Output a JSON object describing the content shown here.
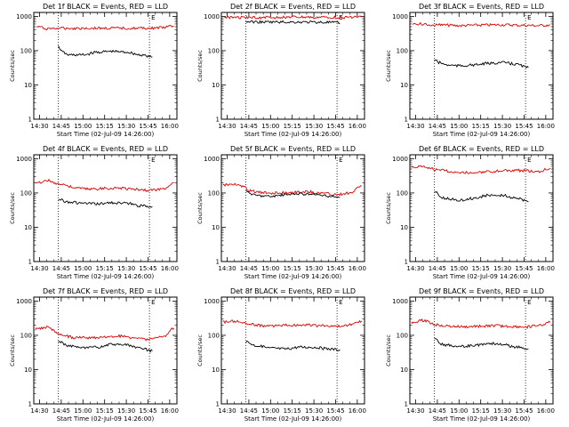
{
  "figure": {
    "colors": {
      "events": "#000000",
      "lld": "#e00000",
      "axes": "#000000",
      "background": "#ffffff"
    }
  },
  "chart_data": [
    {
      "type": "line",
      "title": "Det 1f BLACK = Events, RED = LLD",
      "flag_label": "E",
      "xlabel": "Start Time (02-Jul-09 14:26:00)",
      "ylabel": "Counts/sec",
      "ylim": [
        1,
        1300
      ],
      "y_scale": "log",
      "xlim": [
        "14:26",
        "16:05"
      ],
      "xticks": [
        "14:30",
        "14:45",
        "15:00",
        "15:15",
        "15:30",
        "15:45",
        "16:00"
      ],
      "yticks": [
        "1",
        "10",
        "100",
        "1000"
      ],
      "markers": [
        "14:43",
        "15:46"
      ],
      "series": [
        {
          "name": "LLD",
          "color": "#e00000",
          "x": [
            "14:28",
            "14:35",
            "14:45",
            "15:00",
            "15:15",
            "15:30",
            "15:45",
            "15:55",
            "16:03"
          ],
          "y": [
            500,
            440,
            450,
            450,
            450,
            450,
            450,
            470,
            520
          ]
        },
        {
          "name": "Events",
          "color": "#000000",
          "x": [
            "14:43",
            "14:46",
            "14:50",
            "15:00",
            "15:10",
            "15:20",
            "15:30",
            "15:40",
            "15:48"
          ],
          "y": [
            130,
            90,
            75,
            75,
            90,
            95,
            90,
            75,
            65
          ]
        }
      ]
    },
    {
      "type": "line",
      "title": "Det 2f BLACK = Events, RED = LLD",
      "flag_label": "E",
      "xlabel": "Start Time (02-Jul-09 14:26:00)",
      "ylabel": "Counts/sec",
      "ylim": [
        1,
        1300
      ],
      "y_scale": "log",
      "xlim": [
        "14:26",
        "16:05"
      ],
      "xticks": [
        "14:30",
        "14:45",
        "15:00",
        "15:15",
        "15:30",
        "15:45",
        "16:00"
      ],
      "yticks": [
        "1",
        "10",
        "100",
        "1000"
      ],
      "markers": [
        "14:43",
        "15:46"
      ],
      "series": [
        {
          "name": "LLD",
          "color": "#e00000",
          "x": [
            "14:28",
            "14:45",
            "15:00",
            "15:15",
            "15:30",
            "15:45",
            "16:03"
          ],
          "y": [
            950,
            920,
            930,
            940,
            930,
            930,
            950
          ]
        },
        {
          "name": "Events",
          "color": "#000000",
          "x": [
            "14:43",
            "14:55",
            "15:10",
            "15:25",
            "15:40",
            "15:48"
          ],
          "y": [
            700,
            680,
            680,
            680,
            670,
            640
          ]
        }
      ]
    },
    {
      "type": "line",
      "title": "Det 3f BLACK = Events, RED = LLD",
      "flag_label": "E",
      "xlabel": "Start Time (02-Jul-09 14:26:00)",
      "ylabel": "Counts/sec",
      "ylim": [
        1,
        1300
      ],
      "y_scale": "log",
      "xlim": [
        "14:26",
        "16:05"
      ],
      "xticks": [
        "14:30",
        "14:45",
        "15:00",
        "15:15",
        "15:30",
        "15:45",
        "16:00"
      ],
      "yticks": [
        "1",
        "10",
        "100",
        "1000"
      ],
      "markers": [
        "14:43",
        "15:46"
      ],
      "series": [
        {
          "name": "LLD",
          "color": "#e00000",
          "x": [
            "14:28",
            "14:40",
            "14:50",
            "15:00",
            "15:15",
            "15:30",
            "15:45",
            "15:55",
            "16:03"
          ],
          "y": [
            620,
            560,
            560,
            540,
            560,
            570,
            550,
            540,
            560
          ]
        },
        {
          "name": "Events",
          "color": "#000000",
          "x": [
            "14:43",
            "14:46",
            "14:52",
            "15:00",
            "15:10",
            "15:20",
            "15:30",
            "15:40",
            "15:48"
          ],
          "y": [
            55,
            45,
            38,
            36,
            38,
            42,
            45,
            40,
            32
          ]
        }
      ]
    },
    {
      "type": "line",
      "title": "Det 4f BLACK = Events, RED = LLD",
      "flag_label": "E",
      "xlabel": "Start Time (02-Jul-09 14:26:00)",
      "ylabel": "Counts/sec",
      "ylim": [
        1,
        1300
      ],
      "y_scale": "log",
      "xlim": [
        "14:26",
        "16:05"
      ],
      "xticks": [
        "14:30",
        "14:45",
        "15:00",
        "15:15",
        "15:30",
        "15:45",
        "16:00"
      ],
      "yticks": [
        "1",
        "10",
        "100",
        "1000"
      ],
      "markers": [
        "14:43",
        "15:46"
      ],
      "series": [
        {
          "name": "LLD",
          "color": "#e00000",
          "x": [
            "14:27",
            "14:35",
            "14:45",
            "14:55",
            "15:05",
            "15:15",
            "15:25",
            "15:35",
            "15:45",
            "15:55",
            "16:03"
          ],
          "y": [
            190,
            230,
            180,
            140,
            130,
            135,
            140,
            130,
            120,
            130,
            200
          ]
        },
        {
          "name": "Events",
          "color": "#000000",
          "x": [
            "14:43",
            "14:50",
            "15:00",
            "15:10",
            "15:20",
            "15:30",
            "15:40",
            "15:48"
          ],
          "y": [
            65,
            55,
            50,
            48,
            52,
            50,
            42,
            40
          ]
        }
      ]
    },
    {
      "type": "line",
      "title": "Det 5f BLACK = Events, RED = LLD",
      "flag_label": "E",
      "xlabel": "Start Time (02-Jul-09 14:26:00)",
      "ylabel": "Counts/sec",
      "ylim": [
        1,
        1300
      ],
      "y_scale": "log",
      "xlim": [
        "14:26",
        "16:05"
      ],
      "xticks": [
        "14:30",
        "14:45",
        "15:00",
        "15:15",
        "15:30",
        "15:45",
        "16:00"
      ],
      "yticks": [
        "1",
        "10",
        "100",
        "1000"
      ],
      "markers": [
        "14:43",
        "15:46"
      ],
      "series": [
        {
          "name": "LLD",
          "color": "#e00000",
          "x": [
            "14:27",
            "14:33",
            "14:40",
            "14:46",
            "14:55",
            "15:05",
            "15:15",
            "15:25",
            "15:35",
            "15:45",
            "15:55",
            "16:03"
          ],
          "y": [
            170,
            180,
            160,
            115,
            100,
            100,
            105,
            110,
            100,
            90,
            100,
            160
          ]
        },
        {
          "name": "Events",
          "color": "#000000",
          "x": [
            "14:43",
            "14:50",
            "15:00",
            "15:10",
            "15:20",
            "15:30",
            "15:40",
            "15:48"
          ],
          "y": [
            110,
            85,
            80,
            88,
            95,
            90,
            80,
            75
          ]
        }
      ]
    },
    {
      "type": "line",
      "title": "Det 6f BLACK = Events, RED = LLD",
      "flag_label": "E",
      "xlabel": "Start Time (02-Jul-09 14:26:00)",
      "ylabel": "Counts/sec",
      "ylim": [
        1,
        1300
      ],
      "y_scale": "log",
      "xlim": [
        "14:26",
        "16:05"
      ],
      "xticks": [
        "14:30",
        "14:45",
        "15:00",
        "15:15",
        "15:30",
        "15:45",
        "16:00"
      ],
      "yticks": [
        "1",
        "10",
        "100",
        "1000"
      ],
      "markers": [
        "14:43",
        "15:46"
      ],
      "series": [
        {
          "name": "LLD",
          "color": "#e00000",
          "x": [
            "14:27",
            "14:35",
            "14:45",
            "14:55",
            "15:05",
            "15:15",
            "15:25",
            "15:35",
            "15:45",
            "15:55",
            "16:03"
          ],
          "y": [
            560,
            600,
            480,
            420,
            400,
            410,
            430,
            460,
            450,
            420,
            520
          ]
        },
        {
          "name": "Events",
          "color": "#000000",
          "x": [
            "14:43",
            "14:50",
            "15:00",
            "15:10",
            "15:20",
            "15:30",
            "15:40",
            "15:48"
          ],
          "y": [
            105,
            70,
            62,
            70,
            85,
            85,
            70,
            55
          ]
        }
      ]
    },
    {
      "type": "line",
      "title": "Det 7f BLACK = Events, RED = LLD",
      "flag_label": "E",
      "xlabel": "Start Time (02-Jul-09 14:26:00)",
      "ylabel": "Counts/sec",
      "ylim": [
        1,
        1300
      ],
      "y_scale": "log",
      "xlim": [
        "14:26",
        "16:05"
      ],
      "xticks": [
        "14:30",
        "14:45",
        "15:00",
        "15:15",
        "15:30",
        "15:45",
        "16:00"
      ],
      "yticks": [
        "1",
        "10",
        "100",
        "1000"
      ],
      "markers": [
        "14:43",
        "15:46"
      ],
      "series": [
        {
          "name": "LLD",
          "color": "#e00000",
          "x": [
            "14:27",
            "14:35",
            "14:45",
            "14:55",
            "15:05",
            "15:15",
            "15:25",
            "15:35",
            "15:45",
            "15:55",
            "16:03"
          ],
          "y": [
            150,
            170,
            100,
            85,
            85,
            90,
            95,
            85,
            75,
            90,
            160
          ]
        },
        {
          "name": "Events",
          "color": "#000000",
          "x": [
            "14:43",
            "14:50",
            "15:00",
            "15:10",
            "15:20",
            "15:30",
            "15:40",
            "15:48"
          ],
          "y": [
            65,
            50,
            42,
            45,
            55,
            52,
            42,
            35
          ]
        }
      ]
    },
    {
      "type": "line",
      "title": "Det 8f BLACK = Events, RED = LLD",
      "flag_label": "E",
      "xlabel": "Start Time (02-Jul-09 14:26:00)",
      "ylabel": "Counts/sec",
      "ylim": [
        1,
        1300
      ],
      "y_scale": "log",
      "xlim": [
        "14:26",
        "16:05"
      ],
      "xticks": [
        "14:30",
        "14:45",
        "15:00",
        "15:15",
        "15:30",
        "15:45",
        "16:00"
      ],
      "yticks": [
        "1",
        "10",
        "100",
        "1000"
      ],
      "markers": [
        "14:43",
        "15:46"
      ],
      "series": [
        {
          "name": "LLD",
          "color": "#e00000",
          "x": [
            "14:27",
            "14:35",
            "14:45",
            "14:55",
            "15:05",
            "15:15",
            "15:25",
            "15:35",
            "15:45",
            "15:55",
            "16:03"
          ],
          "y": [
            240,
            260,
            210,
            190,
            190,
            200,
            200,
            190,
            180,
            200,
            260
          ]
        },
        {
          "name": "Events",
          "color": "#000000",
          "x": [
            "14:43",
            "14:50",
            "15:00",
            "15:10",
            "15:20",
            "15:30",
            "15:40",
            "15:48"
          ],
          "y": [
            65,
            50,
            42,
            40,
            45,
            45,
            40,
            38
          ]
        }
      ]
    },
    {
      "type": "line",
      "title": "Det 9f BLACK = Events, RED = LLD",
      "flag_label": "E",
      "xlabel": "Start Time (02-Jul-09 14:26:00)",
      "ylabel": "Counts/sec",
      "ylim": [
        1,
        1300
      ],
      "y_scale": "log",
      "xlim": [
        "14:26",
        "16:05"
      ],
      "xticks": [
        "14:30",
        "14:45",
        "15:00",
        "15:15",
        "15:30",
        "15:45",
        "16:00"
      ],
      "yticks": [
        "1",
        "10",
        "100",
        "1000"
      ],
      "markers": [
        "14:43",
        "15:46"
      ],
      "series": [
        {
          "name": "LLD",
          "color": "#e00000",
          "x": [
            "14:27",
            "14:35",
            "14:45",
            "14:55",
            "15:05",
            "15:15",
            "15:25",
            "15:35",
            "15:45",
            "15:55",
            "16:03"
          ],
          "y": [
            240,
            270,
            200,
            180,
            175,
            185,
            190,
            180,
            175,
            190,
            240
          ]
        },
        {
          "name": "Events",
          "color": "#000000",
          "x": [
            "14:43",
            "14:50",
            "15:00",
            "15:10",
            "15:20",
            "15:30",
            "15:40",
            "15:48"
          ],
          "y": [
            75,
            52,
            48,
            50,
            58,
            55,
            45,
            40
          ]
        }
      ]
    }
  ]
}
